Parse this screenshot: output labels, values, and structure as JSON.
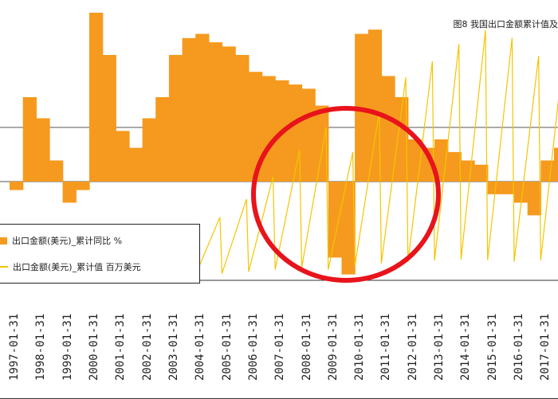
{
  "title": "图8   我国出口金额累计值及",
  "legend": {
    "bar_series": "出口金额(美元)_累计同比 %",
    "line_series": "出口金额(美元)_累计值 百万美元"
  },
  "colors": {
    "bars": "#f59a1e",
    "line": "#f5c400",
    "annotation_circle": "#e8131b",
    "gridline": "#555555"
  },
  "chart_data": {
    "type": "bar",
    "title": "图8   我国出口金额累计值及",
    "x_tick_labels": [
      "1997-01-31",
      "1998-01-31",
      "1999-01-31",
      "2000-01-31",
      "2001-01-31",
      "2002-01-31",
      "2003-01-31",
      "2004-01-31",
      "2005-01-31",
      "2006-01-31",
      "2007-01-31",
      "2008-01-31",
      "2009-01-31",
      "2010-01-31",
      "2011-01-31",
      "2012-01-31",
      "2013-01-31",
      "2014-01-31",
      "2015-01-31",
      "2016-01-31",
      "2017-01-31"
    ],
    "series": [
      {
        "name": "出口金额(美元)_累计同比 %",
        "type": "bar",
        "x": [
          1997.0,
          1997.5,
          1998.0,
          1998.5,
          1999.0,
          1999.5,
          2000.0,
          2000.5,
          2001.0,
          2001.5,
          2002.0,
          2002.5,
          2003.0,
          2003.5,
          2004.0,
          2004.5,
          2005.0,
          2005.5,
          2006.0,
          2006.5,
          2007.0,
          2007.5,
          2008.0,
          2008.5,
          2009.0,
          2009.5,
          2010.0,
          2010.5,
          2011.0,
          2011.5,
          2012.0,
          2012.5,
          2013.0,
          2013.5,
          2014.0,
          2014.5,
          2015.0,
          2015.5,
          2016.0,
          2016.5,
          2017.0,
          2017.5
        ],
        "values": [
          -2,
          20,
          15,
          5,
          -5,
          -2,
          40,
          30,
          12,
          8,
          15,
          20,
          30,
          34,
          35,
          33,
          32,
          30,
          26,
          25,
          24,
          23,
          22,
          18,
          -18,
          -22,
          35,
          36,
          25,
          20,
          10,
          8,
          10,
          7,
          5,
          4,
          -3,
          -3,
          -5,
          -8,
          5,
          8
        ]
      },
      {
        "name": "出口金额(美元)_累计值 百万美元",
        "type": "line",
        "x": [
          1997,
          1998,
          1999,
          2000,
          2001,
          2002,
          2003,
          2004,
          2005,
          2006,
          2007,
          2008,
          2009,
          2010,
          2011,
          2012,
          2013,
          2014,
          2015,
          2016,
          2017
        ],
        "values": [
          180000,
          180000,
          190000,
          250000,
          265000,
          325000,
          440000,
          590000,
          760000,
          970000,
          1220000,
          1430000,
          1200000,
          1580000,
          1900000,
          2050000,
          2210000,
          2340000,
          2270000,
          2100000,
          2260000
        ]
      }
    ],
    "annotations": [
      "red circle highlighting 2008-2011"
    ]
  }
}
